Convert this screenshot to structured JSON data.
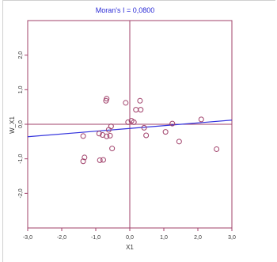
{
  "chart_data": {
    "type": "scatter",
    "title": "Moran's I = 0,0800",
    "xlabel": "X1",
    "ylabel": "W_X1",
    "xlim": [
      -3.0,
      3.0
    ],
    "ylim": [
      -3.0,
      3.0
    ],
    "xticks": [
      -3.0,
      -2.0,
      -1.0,
      0.0,
      1.0,
      2.0,
      3.0
    ],
    "xtick_labels": [
      "-3,0",
      "-2,0",
      "-1,0",
      "0,0",
      "1,0",
      "2,0",
      "3,0"
    ],
    "yticks": [
      -2.0,
      -1.0,
      0.0,
      1.0,
      2.0
    ],
    "ytick_labels": [
      "-2,0",
      "-1,0",
      "0,0",
      "1,0",
      "2,0"
    ],
    "grid": false,
    "points": [
      {
        "x": -1.37,
        "y": -0.34
      },
      {
        "x": -1.33,
        "y": -0.96
      },
      {
        "x": -1.37,
        "y": -1.07
      },
      {
        "x": -0.88,
        "y": -1.04
      },
      {
        "x": -0.78,
        "y": -1.03
      },
      {
        "x": -0.9,
        "y": -0.27
      },
      {
        "x": -0.8,
        "y": -0.31
      },
      {
        "x": -0.68,
        "y": -0.35
      },
      {
        "x": -0.58,
        "y": -0.33
      },
      {
        "x": -0.62,
        "y": -0.16
      },
      {
        "x": -0.55,
        "y": -0.06
      },
      {
        "x": -0.52,
        "y": -0.7
      },
      {
        "x": -0.7,
        "y": 0.68
      },
      {
        "x": -0.68,
        "y": 0.74
      },
      {
        "x": -0.12,
        "y": 0.62
      },
      {
        "x": -0.05,
        "y": 0.06
      },
      {
        "x": 0.05,
        "y": 0.1
      },
      {
        "x": 0.12,
        "y": 0.06
      },
      {
        "x": 0.18,
        "y": 0.42
      },
      {
        "x": 0.32,
        "y": 0.42
      },
      {
        "x": 0.3,
        "y": 0.68
      },
      {
        "x": 0.42,
        "y": -0.1
      },
      {
        "x": 0.48,
        "y": -0.32
      },
      {
        "x": 1.05,
        "y": -0.22
      },
      {
        "x": 1.25,
        "y": 0.02
      },
      {
        "x": 1.45,
        "y": -0.5
      },
      {
        "x": 2.1,
        "y": 0.14
      },
      {
        "x": 2.55,
        "y": -0.72
      }
    ],
    "regression_line": {
      "intercept": -0.12,
      "slope": 0.08
    },
    "colors": {
      "frame": "#a0406a",
      "axes": "#a0406a",
      "points": "#a0406a",
      "regression": "#3333dd",
      "title": "#2a2ad6"
    }
  }
}
